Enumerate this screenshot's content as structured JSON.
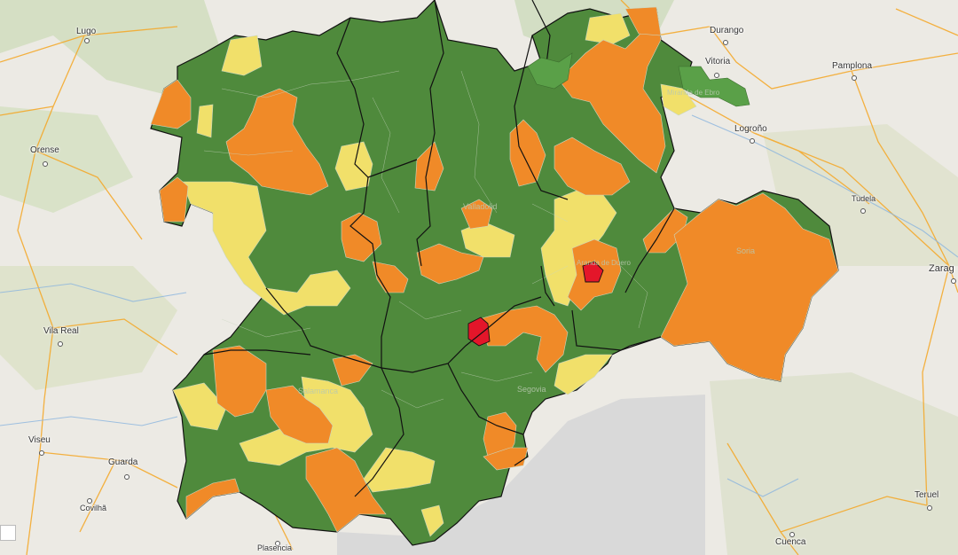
{
  "map": {
    "region": "Castilla y León",
    "risk_colors": {
      "low": "#4f8a3c",
      "medium": "#f1e06a",
      "high": "#f08a28",
      "very_high": "#e4162a"
    },
    "background_color": "#eceae4",
    "unavailable_area_color": "#d9d9d9",
    "province_border_color": "#111111",
    "zone_border_color": "#c9d6c0",
    "cities": [
      {
        "name": "Lugo"
      },
      {
        "name": "Durango"
      },
      {
        "name": "Vitoria"
      },
      {
        "name": "Pamplona"
      },
      {
        "name": "Orense"
      },
      {
        "name": "Logroño"
      },
      {
        "name": "Tudela"
      },
      {
        "name": "Zarag"
      },
      {
        "name": "Vila Real"
      },
      {
        "name": "Viseu"
      },
      {
        "name": "Guarda"
      },
      {
        "name": "Covilhã"
      },
      {
        "name": "Plasencia"
      },
      {
        "name": "Cuenca"
      },
      {
        "name": "Teruel"
      }
    ],
    "inner_labels": [
      {
        "name": "Valladolid"
      },
      {
        "name": "Soria"
      },
      {
        "name": "Salamanca"
      },
      {
        "name": "Segovia"
      },
      {
        "name": "Aranda de Duero"
      },
      {
        "name": "Miranda de Ebro"
      }
    ]
  }
}
